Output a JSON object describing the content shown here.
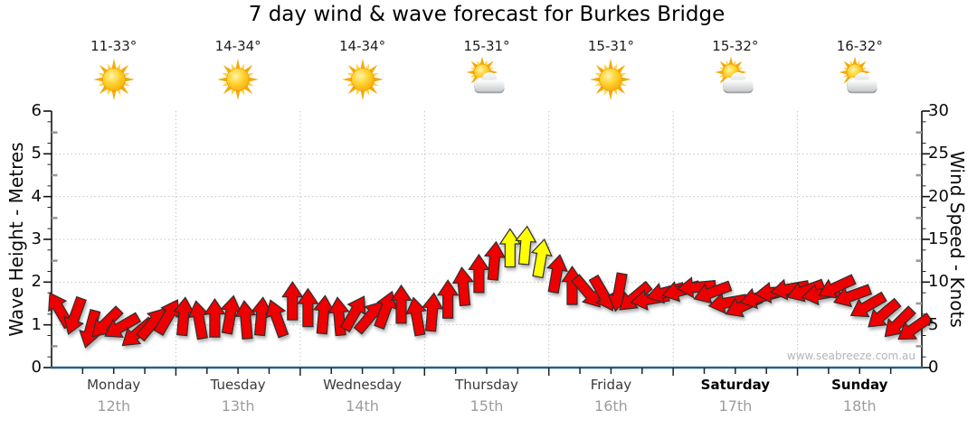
{
  "title": "7 day wind & wave forecast for Burkes Bridge",
  "watermark": "www.seabreeze.com.au",
  "days": [
    {
      "name": "Monday",
      "date": "12th",
      "temp": "11-33°",
      "icon": "sunny",
      "weekend": false
    },
    {
      "name": "Tuesday",
      "date": "13th",
      "temp": "14-34°",
      "icon": "sunny",
      "weekend": false
    },
    {
      "name": "Wednesday",
      "date": "14th",
      "temp": "14-34°",
      "icon": "sunny",
      "weekend": false
    },
    {
      "name": "Thursday",
      "date": "15th",
      "temp": "15-31°",
      "icon": "sun-cloud",
      "weekend": false
    },
    {
      "name": "Friday",
      "date": "16th",
      "temp": "15-31°",
      "icon": "sunny",
      "weekend": false
    },
    {
      "name": "Saturday",
      "date": "17th",
      "temp": "15-32°",
      "icon": "sun-cloud",
      "weekend": true
    },
    {
      "name": "Sunday",
      "date": "18th",
      "temp": "16-32°",
      "icon": "sun-cloud",
      "weekend": true
    }
  ],
  "chart_data": {
    "type": "scatter",
    "subtype": "wind-direction-arrows",
    "title": "7 day wind & wave forecast for Burkes Bridge",
    "y_left_axis": {
      "label": "Wave Height - Metres",
      "min": 0,
      "max": 6,
      "tick_step": 1,
      "gridlines": [
        1,
        2,
        3,
        4,
        5
      ]
    },
    "y_right_axis": {
      "label": "Wind Speed - Knots",
      "min": 0,
      "max": 30,
      "tick_step": 5
    },
    "x_axis": {
      "categories": [
        "Monday 12th",
        "Tuesday 13th",
        "Wednesday 14th",
        "Thursday 15th",
        "Friday 16th",
        "Saturday 17th",
        "Sunday 18th"
      ],
      "day_boundary_gridlines": true,
      "minor_ticks_per_day": 4
    },
    "samples_per_day": 8,
    "sample_interval_hours": 3,
    "units": "knots",
    "wind_points": [
      {
        "day": "Monday",
        "knots": [
          6.8,
          6.0,
          4.5,
          5.2,
          4.8,
          4.0,
          5.2,
          6.0
        ],
        "dir_deg": [
          330,
          200,
          195,
          225,
          240,
          230,
          40,
          30
        ]
      },
      {
        "day": "Tuesday",
        "knots": [
          6.0,
          5.6,
          5.8,
          6.2,
          5.6,
          6.0,
          5.8,
          7.8
        ],
        "dir_deg": [
          5,
          350,
          0,
          10,
          355,
          5,
          340,
          0
        ]
      },
      {
        "day": "Wednesday",
        "knots": [
          7.0,
          6.2,
          6.0,
          6.4,
          6.0,
          6.8,
          7.4,
          6.0
        ],
        "dir_deg": [
          0,
          5,
          355,
          30,
          40,
          20,
          0,
          350
        ]
      },
      {
        "day": "Thursday",
        "knots": [
          6.5,
          8.0,
          9.5,
          11.0,
          12.5,
          14.0,
          14.3,
          12.8
        ],
        "dir_deg": [
          5,
          0,
          355,
          0,
          5,
          0,
          5,
          10
        ],
        "arrow_colors": [
          "red",
          "red",
          "red",
          "red",
          "red",
          "yellow",
          "yellow",
          "yellow"
        ]
      },
      {
        "day": "Friday",
        "knots": [
          11.0,
          9.6,
          8.8,
          8.6,
          8.8,
          8.2,
          8.0,
          8.8
        ],
        "dir_deg": [
          10,
          0,
          140,
          150,
          190,
          230,
          260,
          255
        ]
      },
      {
        "day": "Saturday",
        "knots": [
          9.0,
          9.4,
          8.8,
          7.6,
          7.2,
          8.2,
          8.8,
          9.2
        ],
        "dir_deg": [
          255,
          265,
          250,
          260,
          245,
          255,
          265,
          260
        ]
      },
      {
        "day": "Sunday",
        "knots": [
          9.0,
          8.6,
          9.4,
          8.4,
          7.2,
          6.2,
          5.2,
          4.6
        ],
        "dir_deg": [
          250,
          260,
          245,
          250,
          240,
          230,
          225,
          235
        ]
      }
    ],
    "colors": {
      "arrow_red": "#ee0000",
      "arrow_yellow": "#ffff00",
      "arrow_outline": "#2e2e2e",
      "bottom_axis": "#26608a",
      "axis": "#111111",
      "grid": "#c4c4c4",
      "half_tick": "#9a9a9a"
    }
  }
}
